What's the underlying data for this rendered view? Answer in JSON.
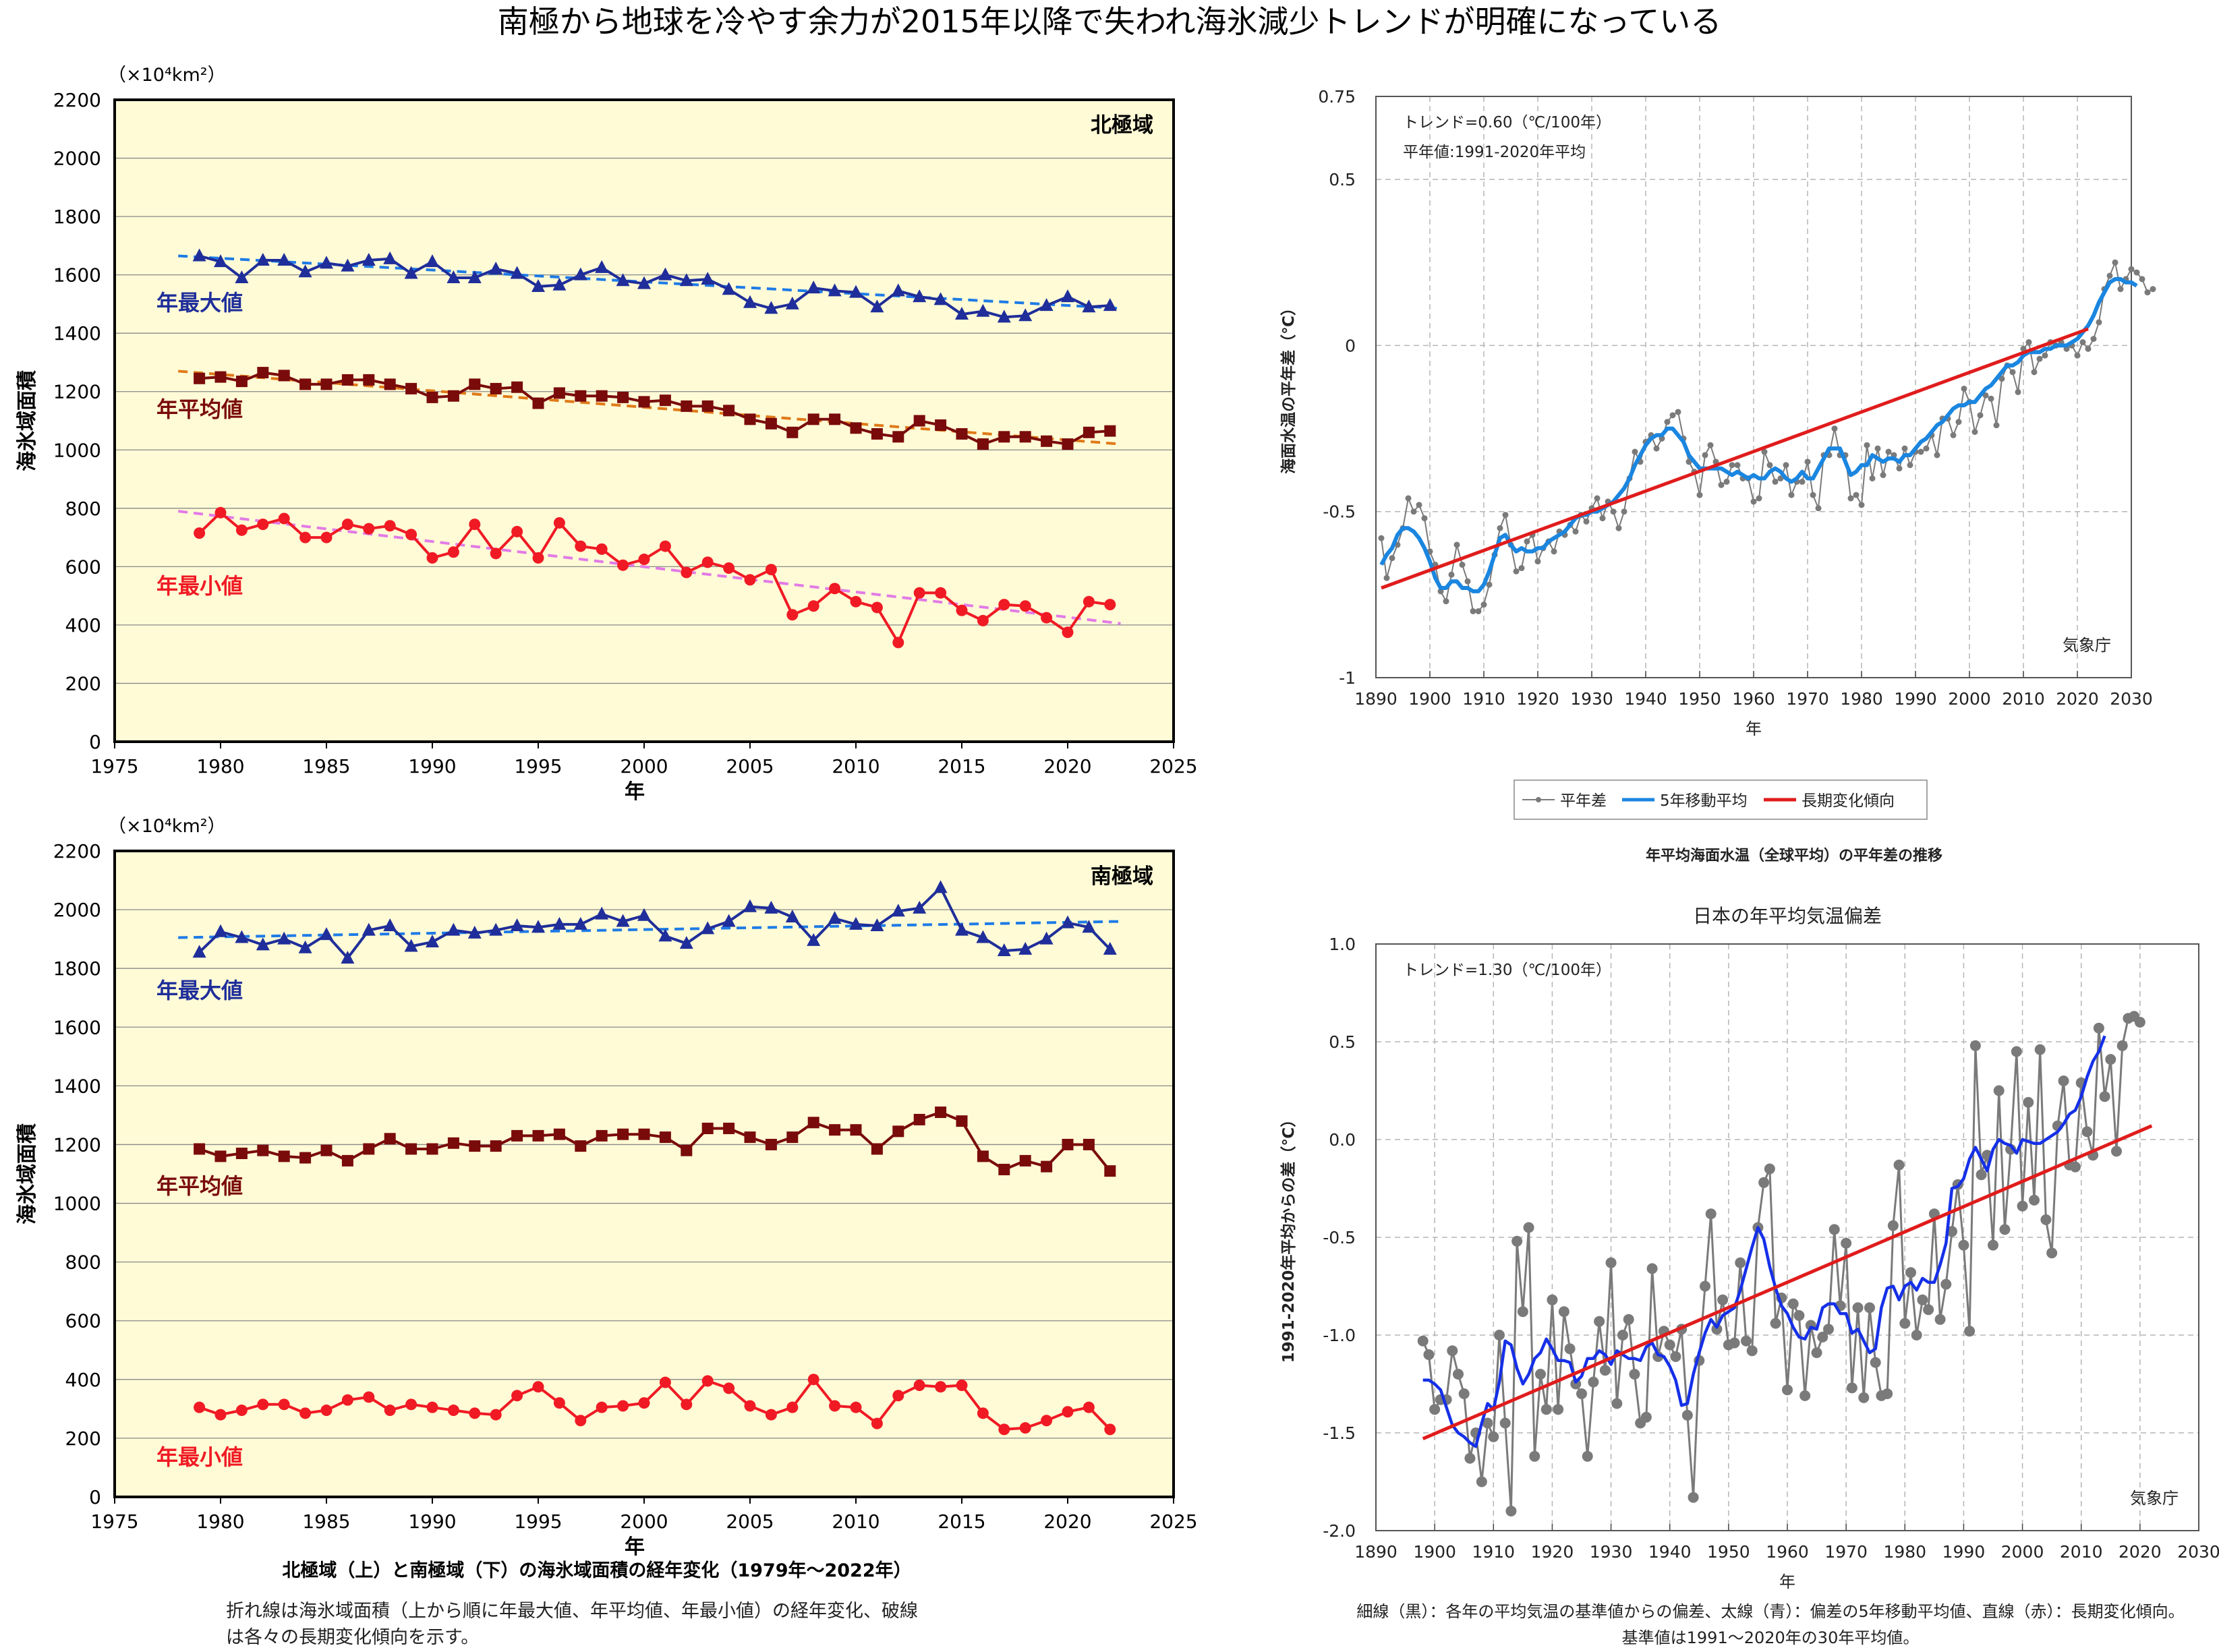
{
  "headline": "南極から地球を冷やす余力が2015年以降で失われ海氷減少トレンドが明確になっている",
  "colors": {
    "panel_bg": "#FFFBD6",
    "max_line": "#1F2E9A",
    "max_trend": "#1E7BE6",
    "mean_line": "#7A0B0B",
    "mean_trend": "#E07A18",
    "min_line": "#F01A24",
    "min_trend": "#E27BE6",
    "sst_raw": "#7A7A7A",
    "sst_ma": "#1A86E0",
    "trend_red": "#E01C1C",
    "jp_ma": "#1530E8"
  },
  "chart_data": [
    {
      "id": "arctic",
      "type": "line",
      "unit_label": "（×10⁴km²）",
      "panel_label": "北極域",
      "xlabel": "年",
      "ylabel": "海氷域面積",
      "xlim": [
        1975,
        2025
      ],
      "ylim": [
        0,
        2200
      ],
      "x_ticks": [
        1975,
        1980,
        1985,
        1990,
        1995,
        2000,
        2005,
        2010,
        2015,
        2020,
        2025
      ],
      "y_ticks": [
        0,
        200,
        400,
        600,
        800,
        1000,
        1200,
        1400,
        1600,
        1800,
        2000,
        2200
      ],
      "grid": true,
      "x": [
        1979,
        1980,
        1981,
        1982,
        1983,
        1984,
        1985,
        1986,
        1987,
        1988,
        1989,
        1990,
        1991,
        1992,
        1993,
        1994,
        1995,
        1996,
        1997,
        1998,
        1999,
        2000,
        2001,
        2002,
        2003,
        2004,
        2005,
        2006,
        2007,
        2008,
        2009,
        2010,
        2011,
        2012,
        2013,
        2014,
        2015,
        2016,
        2017,
        2018,
        2019,
        2020,
        2021,
        2022
      ],
      "series": [
        {
          "name": "年最大値",
          "key": "max",
          "marker": "triangle",
          "values": [
            1665,
            1645,
            1590,
            1650,
            1650,
            1610,
            1640,
            1630,
            1650,
            1655,
            1605,
            1645,
            1590,
            1590,
            1620,
            1605,
            1560,
            1565,
            1600,
            1625,
            1580,
            1570,
            1600,
            1580,
            1585,
            1550,
            1505,
            1485,
            1500,
            1555,
            1545,
            1540,
            1490,
            1545,
            1525,
            1515,
            1465,
            1475,
            1455,
            1460,
            1495,
            1525,
            1490,
            1495
          ],
          "trend": [
            1665,
            1485
          ]
        },
        {
          "name": "年平均値",
          "key": "mean",
          "marker": "square",
          "values": [
            1245,
            1250,
            1235,
            1265,
            1255,
            1225,
            1225,
            1240,
            1240,
            1225,
            1210,
            1180,
            1185,
            1225,
            1210,
            1215,
            1160,
            1195,
            1185,
            1185,
            1180,
            1165,
            1170,
            1150,
            1150,
            1135,
            1105,
            1090,
            1060,
            1105,
            1105,
            1075,
            1055,
            1045,
            1100,
            1085,
            1055,
            1020,
            1045,
            1045,
            1030,
            1020,
            1060,
            1065
          ],
          "trend": [
            1270,
            1020
          ]
        },
        {
          "name": "年最小値",
          "key": "min",
          "marker": "circle",
          "values": [
            715,
            785,
            725,
            745,
            765,
            700,
            700,
            745,
            730,
            740,
            710,
            630,
            650,
            745,
            645,
            720,
            630,
            750,
            670,
            660,
            605,
            625,
            670,
            580,
            615,
            595,
            555,
            590,
            435,
            465,
            525,
            480,
            460,
            340,
            510,
            510,
            450,
            415,
            470,
            465,
            425,
            375,
            480,
            470
          ],
          "trend": [
            790,
            405
          ]
        }
      ]
    },
    {
      "id": "antarctic",
      "type": "line",
      "unit_label": "（×10⁴km²）",
      "panel_label": "南極域",
      "xlabel": "年",
      "ylabel": "海氷域面積",
      "xlim": [
        1975,
        2025
      ],
      "ylim": [
        0,
        2200
      ],
      "x_ticks": [
        1975,
        1980,
        1985,
        1990,
        1995,
        2000,
        2005,
        2010,
        2015,
        2020,
        2025
      ],
      "y_ticks": [
        0,
        200,
        400,
        600,
        800,
        1000,
        1200,
        1400,
        1600,
        1800,
        2000,
        2200
      ],
      "grid": true,
      "x": [
        1979,
        1980,
        1981,
        1982,
        1983,
        1984,
        1985,
        1986,
        1987,
        1988,
        1989,
        1990,
        1991,
        1992,
        1993,
        1994,
        1995,
        1996,
        1997,
        1998,
        1999,
        2000,
        2001,
        2002,
        2003,
        2004,
        2005,
        2006,
        2007,
        2008,
        2009,
        2010,
        2011,
        2012,
        2013,
        2014,
        2015,
        2016,
        2017,
        2018,
        2019,
        2020,
        2021,
        2022
      ],
      "series": [
        {
          "name": "年最大値",
          "key": "max",
          "marker": "triangle",
          "values": [
            1855,
            1925,
            1905,
            1880,
            1900,
            1870,
            1915,
            1835,
            1930,
            1945,
            1875,
            1890,
            1930,
            1920,
            1930,
            1945,
            1940,
            1950,
            1950,
            1985,
            1960,
            1980,
            1910,
            1885,
            1935,
            1960,
            2010,
            2005,
            1975,
            1895,
            1970,
            1950,
            1945,
            1995,
            2005,
            2075,
            1930,
            1905,
            1860,
            1865,
            1900,
            1955,
            1940,
            1865
          ],
          "trend": [
            1905,
            1960
          ]
        },
        {
          "name": "年平均値",
          "key": "mean",
          "marker": "square",
          "values": [
            1185,
            1160,
            1170,
            1180,
            1160,
            1155,
            1180,
            1145,
            1185,
            1220,
            1185,
            1185,
            1205,
            1195,
            1195,
            1230,
            1230,
            1235,
            1195,
            1230,
            1235,
            1235,
            1225,
            1180,
            1255,
            1255,
            1225,
            1200,
            1225,
            1275,
            1250,
            1250,
            1185,
            1245,
            1285,
            1310,
            1280,
            1160,
            1115,
            1145,
            1125,
            1200,
            1200,
            1110
          ],
          "trend": null
        },
        {
          "name": "年最小値",
          "key": "min",
          "marker": "circle",
          "values": [
            305,
            280,
            295,
            315,
            315,
            285,
            295,
            330,
            340,
            295,
            315,
            305,
            295,
            285,
            280,
            345,
            375,
            320,
            260,
            305,
            310,
            320,
            390,
            315,
            395,
            370,
            310,
            280,
            305,
            400,
            310,
            305,
            250,
            345,
            380,
            375,
            380,
            285,
            230,
            235,
            260,
            290,
            305,
            230
          ],
          "trend": null
        }
      ]
    },
    {
      "id": "sst",
      "type": "line",
      "annotation_lines": [
        "トレンド=0.60（℃/100年）",
        "平年値:1991-2020年平均"
      ],
      "credit": "気象庁",
      "xlabel": "年",
      "ylabel": "海面水温の平年差（℃）",
      "xlim": [
        1890,
        2030
      ],
      "ylim": [
        -1,
        0.75
      ],
      "x_ticks": [
        1890,
        1900,
        1910,
        1920,
        1930,
        1940,
        1950,
        1960,
        1970,
        1980,
        1990,
        2000,
        2010,
        2020,
        2030
      ],
      "y_ticks": [
        -1,
        -0.5,
        0,
        0.5,
        0.75
      ],
      "y_tick_labels": [
        "-1",
        "-0.5",
        "0",
        "0.5",
        "0.75"
      ],
      "grid": true,
      "legend": [
        "平年差",
        "5年移動平均",
        "長期変化傾向"
      ],
      "caption": "年平均海面水温（全球平均）の平年差の推移",
      "start_year": 1891,
      "anomaly": [
        -0.58,
        -0.7,
        -0.64,
        -0.6,
        -0.55,
        -0.46,
        -0.5,
        -0.48,
        -0.52,
        -0.62,
        -0.66,
        -0.74,
        -0.77,
        -0.69,
        -0.6,
        -0.66,
        -0.71,
        -0.8,
        -0.8,
        -0.78,
        -0.72,
        -0.63,
        -0.55,
        -0.51,
        -0.6,
        -0.68,
        -0.67,
        -0.59,
        -0.57,
        -0.65,
        -0.61,
        -0.59,
        -0.62,
        -0.56,
        -0.57,
        -0.54,
        -0.56,
        -0.51,
        -0.53,
        -0.49,
        -0.46,
        -0.52,
        -0.47,
        -0.5,
        -0.55,
        -0.5,
        -0.4,
        -0.32,
        -0.35,
        -0.29,
        -0.27,
        -0.31,
        -0.28,
        -0.23,
        -0.21,
        -0.2,
        -0.28,
        -0.35,
        -0.38,
        -0.45,
        -0.33,
        -0.3,
        -0.35,
        -0.42,
        -0.41,
        -0.36,
        -0.36,
        -0.4,
        -0.4,
        -0.47,
        -0.46,
        -0.32,
        -0.36,
        -0.41,
        -0.4,
        -0.36,
        -0.45,
        -0.41,
        -0.41,
        -0.35,
        -0.45,
        -0.49,
        -0.33,
        -0.33,
        -0.25,
        -0.33,
        -0.33,
        -0.46,
        -0.45,
        -0.48,
        -0.3,
        -0.4,
        -0.31,
        -0.39,
        -0.32,
        -0.33,
        -0.37,
        -0.31,
        -0.36,
        -0.32,
        -0.32,
        -0.31,
        -0.27,
        -0.33,
        -0.22,
        -0.22,
        -0.27,
        -0.23,
        -0.13,
        -0.17,
        -0.26,
        -0.21,
        -0.15,
        -0.16,
        -0.24,
        -0.1,
        -0.06,
        -0.08,
        -0.14,
        -0.01,
        0.01,
        -0.08,
        -0.04,
        -0.03,
        0.01,
        0.0,
        0.01,
        -0.01,
        0.0,
        -0.03,
        0.01,
        -0.01,
        0.02,
        0.07,
        0.17,
        0.21,
        0.25,
        0.17,
        0.2,
        0.23,
        0.22,
        0.2,
        0.16,
        0.17
      ],
      "moving_average": [
        -0.66,
        -0.63,
        -0.61,
        -0.57,
        -0.55,
        -0.55,
        -0.56,
        -0.58,
        -0.61,
        -0.65,
        -0.7,
        -0.73,
        -0.73,
        -0.71,
        -0.71,
        -0.73,
        -0.73,
        -0.74,
        -0.74,
        -0.72,
        -0.68,
        -0.63,
        -0.58,
        -0.57,
        -0.6,
        -0.62,
        -0.61,
        -0.62,
        -0.62,
        -0.61,
        -0.61,
        -0.59,
        -0.58,
        -0.57,
        -0.56,
        -0.54,
        -0.52,
        -0.51,
        -0.51,
        -0.5,
        -0.5,
        -0.49,
        -0.48,
        -0.47,
        -0.45,
        -0.43,
        -0.4,
        -0.36,
        -0.33,
        -0.3,
        -0.28,
        -0.27,
        -0.27,
        -0.25,
        -0.25,
        -0.27,
        -0.29,
        -0.33,
        -0.35,
        -0.37,
        -0.37,
        -0.37,
        -0.37,
        -0.37,
        -0.38,
        -0.39,
        -0.38,
        -0.39,
        -0.4,
        -0.39,
        -0.4,
        -0.4,
        -0.38,
        -0.37,
        -0.38,
        -0.4,
        -0.41,
        -0.4,
        -0.38,
        -0.4,
        -0.4,
        -0.37,
        -0.34,
        -0.31,
        -0.31,
        -0.31,
        -0.35,
        -0.39,
        -0.38,
        -0.36,
        -0.36,
        -0.33,
        -0.34,
        -0.35,
        -0.34,
        -0.34,
        -0.35,
        -0.33,
        -0.33,
        -0.31,
        -0.29,
        -0.28,
        -0.26,
        -0.24,
        -0.23,
        -0.21,
        -0.19,
        -0.18,
        -0.18,
        -0.17,
        -0.17,
        -0.15,
        -0.13,
        -0.12,
        -0.1,
        -0.08,
        -0.06,
        -0.06,
        -0.05,
        -0.03,
        -0.02,
        -0.02,
        -0.02,
        -0.01,
        -0.01,
        0.0,
        0.0,
        0.0,
        0.01,
        0.02,
        0.04,
        0.06,
        0.09,
        0.13,
        0.16,
        0.19,
        0.2,
        0.2,
        0.19,
        0.19,
        0.18
      ],
      "trend": {
        "x": [
          1891,
          2022
        ],
        "y": [
          -0.73,
          0.05
        ]
      }
    },
    {
      "id": "japan",
      "type": "line",
      "title": "日本の年平均気温偏差",
      "annotation_lines": [
        "トレンド=1.30（℃/100年）"
      ],
      "credit": "気象庁",
      "xlabel": "年",
      "ylabel": "1991-2020年平均からの差（℃）",
      "xlim": [
        1890,
        2030
      ],
      "ylim": [
        -2.0,
        1.0
      ],
      "x_ticks": [
        1890,
        1900,
        1910,
        1920,
        1930,
        1940,
        1950,
        1960,
        1970,
        1980,
        1990,
        2000,
        2010,
        2020,
        2030
      ],
      "y_ticks": [
        -2.0,
        -1.5,
        -1.0,
        -0.5,
        0.0,
        0.5,
        1.0
      ],
      "y_tick_labels": [
        "-2.0",
        "-1.5",
        "-1.0",
        "-0.5",
        "0.0",
        "0.5",
        "1.0"
      ],
      "grid": true,
      "start_year": 1898,
      "anomaly": [
        -1.03,
        -1.1,
        -1.38,
        -1.33,
        -1.33,
        -1.08,
        -1.2,
        -1.3,
        -1.63,
        -1.5,
        -1.75,
        -1.45,
        -1.52,
        -1.0,
        -1.45,
        -1.9,
        -0.52,
        -0.88,
        -0.45,
        -1.62,
        -1.2,
        -1.38,
        -0.82,
        -1.38,
        -0.88,
        -1.07,
        -1.25,
        -1.3,
        -1.62,
        -1.24,
        -0.93,
        -1.18,
        -0.63,
        -1.35,
        -1.0,
        -0.92,
        -1.2,
        -1.45,
        -1.42,
        -0.66,
        -1.11,
        -0.98,
        -1.05,
        -1.11,
        -0.97,
        -1.41,
        -1.83,
        -1.13,
        -0.75,
        -0.38,
        -0.97,
        -0.82,
        -1.05,
        -1.04,
        -0.63,
        -1.03,
        -1.08,
        -0.45,
        -0.22,
        -0.15,
        -0.94,
        -0.81,
        -1.28,
        -0.84,
        -0.9,
        -1.31,
        -0.95,
        -1.09,
        -1.01,
        -0.97,
        -0.46,
        -0.85,
        -0.53,
        -1.27,
        -0.86,
        -1.32,
        -0.86,
        -1.14,
        -1.31,
        -1.3,
        -0.44,
        -0.13,
        -0.94,
        -0.68,
        -1.0,
        -0.82,
        -0.87,
        -0.38,
        -0.92,
        -0.74,
        -0.47,
        -0.23,
        -0.54,
        -0.98,
        0.48,
        -0.18,
        -0.08,
        -0.54,
        0.25,
        -0.46,
        -0.05,
        0.45,
        -0.34,
        0.19,
        -0.31,
        0.46,
        -0.41,
        -0.58,
        0.07,
        0.3,
        -0.13,
        -0.14,
        0.29,
        0.04,
        -0.08,
        0.57,
        0.22,
        0.41,
        -0.06,
        0.48,
        0.62,
        0.63,
        0.6
      ],
      "moving_average": [
        -1.23,
        -1.23,
        -1.25,
        -1.28,
        -1.37,
        -1.46,
        -1.5,
        -1.52,
        -1.55,
        -1.57,
        -1.45,
        -1.35,
        -1.38,
        -1.24,
        -1.03,
        -1.05,
        -1.17,
        -1.25,
        -1.2,
        -1.12,
        -1.09,
        -1.02,
        -1.07,
        -1.13,
        -1.13,
        -1.14,
        -1.24,
        -1.21,
        -1.12,
        -1.12,
        -1.08,
        -1.1,
        -1.15,
        -1.08,
        -1.1,
        -1.12,
        -1.12,
        -1.13,
        -1.06,
        -1.04,
        -1.1,
        -1.11,
        -1.16,
        -1.23,
        -1.36,
        -1.35,
        -1.2,
        -1.09,
        -0.99,
        -0.92,
        -0.96,
        -0.9,
        -0.88,
        -0.86,
        -0.77,
        -0.66,
        -0.55,
        -0.45,
        -0.51,
        -0.65,
        -0.76,
        -0.85,
        -0.89,
        -0.96,
        -1.01,
        -1.02,
        -0.96,
        -0.97,
        -0.86,
        -0.84,
        -0.84,
        -0.89,
        -0.89,
        -0.99,
        -0.97,
        -1.03,
        -1.09,
        -1.07,
        -0.86,
        -0.76,
        -0.75,
        -0.82,
        -0.75,
        -0.73,
        -0.77,
        -0.71,
        -0.73,
        -0.73,
        -0.64,
        -0.53,
        -0.25,
        -0.24,
        -0.2,
        -0.1,
        -0.04,
        -0.1,
        -0.16,
        -0.05,
        0.0,
        -0.02,
        -0.03,
        -0.07,
        0.0,
        -0.01,
        -0.02,
        -0.02,
        0.0,
        0.02,
        0.04,
        0.08,
        0.13,
        0.15,
        0.22,
        0.32,
        0.4,
        0.45,
        0.53
      ],
      "trend": {
        "x": [
          1898,
          2022
        ],
        "y": [
          -1.53,
          0.07
        ]
      }
    }
  ],
  "captions": {
    "sea_ice_caption": "北極域（上）と南極域（下）の海氷域面積の経年変化（1979年～2022年）",
    "sea_ice_note_1": "折れ線は海氷域面積（上から順に年最大値、年平均値、年最小値）の経年変化、破線",
    "sea_ice_note_2": "は各々の長期変化傾向を示す。",
    "japan_note_1": "細線（黒）：各年の平均気温の基準値からの偏差、太線（青）：偏差の5年移動平均値、直線（赤）：長期変化傾向。",
    "japan_note_2": "基準値は1991～2020年の30年平均値。"
  }
}
